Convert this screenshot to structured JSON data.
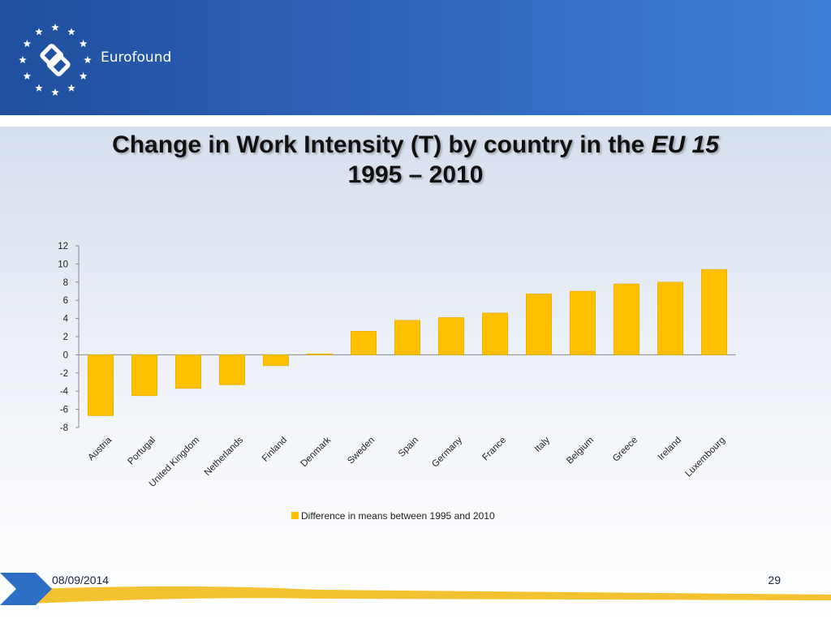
{
  "header": {
    "brand_name": "Eurofound",
    "colors": {
      "header_start": "#1f4f9e",
      "header_end": "#3e7fd8"
    }
  },
  "title": {
    "line1_prefix": "Change in Work Intensity (T) by country in the ",
    "line1_italic": "EU 15",
    "line2": "1995 – 2010"
  },
  "chart_data": {
    "type": "bar",
    "categories": [
      "Austria",
      "Portugal",
      "United Kingdom",
      "Netherlands",
      "Finland",
      "Denmark",
      "Sweden",
      "Spain",
      "Germany",
      "France",
      "Italy",
      "Belgium",
      "Greece",
      "Ireland",
      "Luxembourg"
    ],
    "series": [
      {
        "name": "Difference in means between 1995 and 2010",
        "values": [
          -6.7,
          -4.5,
          -3.7,
          -3.3,
          -1.2,
          0.1,
          2.6,
          3.8,
          4.1,
          4.6,
          6.7,
          7.0,
          7.8,
          8.0,
          9.4
        ],
        "color": "#ffc000"
      }
    ],
    "ylim": [
      -8,
      12
    ],
    "yticks": [
      12,
      10,
      8,
      6,
      4,
      2,
      0,
      -2,
      -4,
      -6,
      -8
    ],
    "grid": false,
    "legend": "bottom"
  },
  "footer": {
    "date": "08/09/2014",
    "page_number": "29",
    "colors": {
      "arrow": "#2e6fc6",
      "band": "#f2c230"
    }
  }
}
